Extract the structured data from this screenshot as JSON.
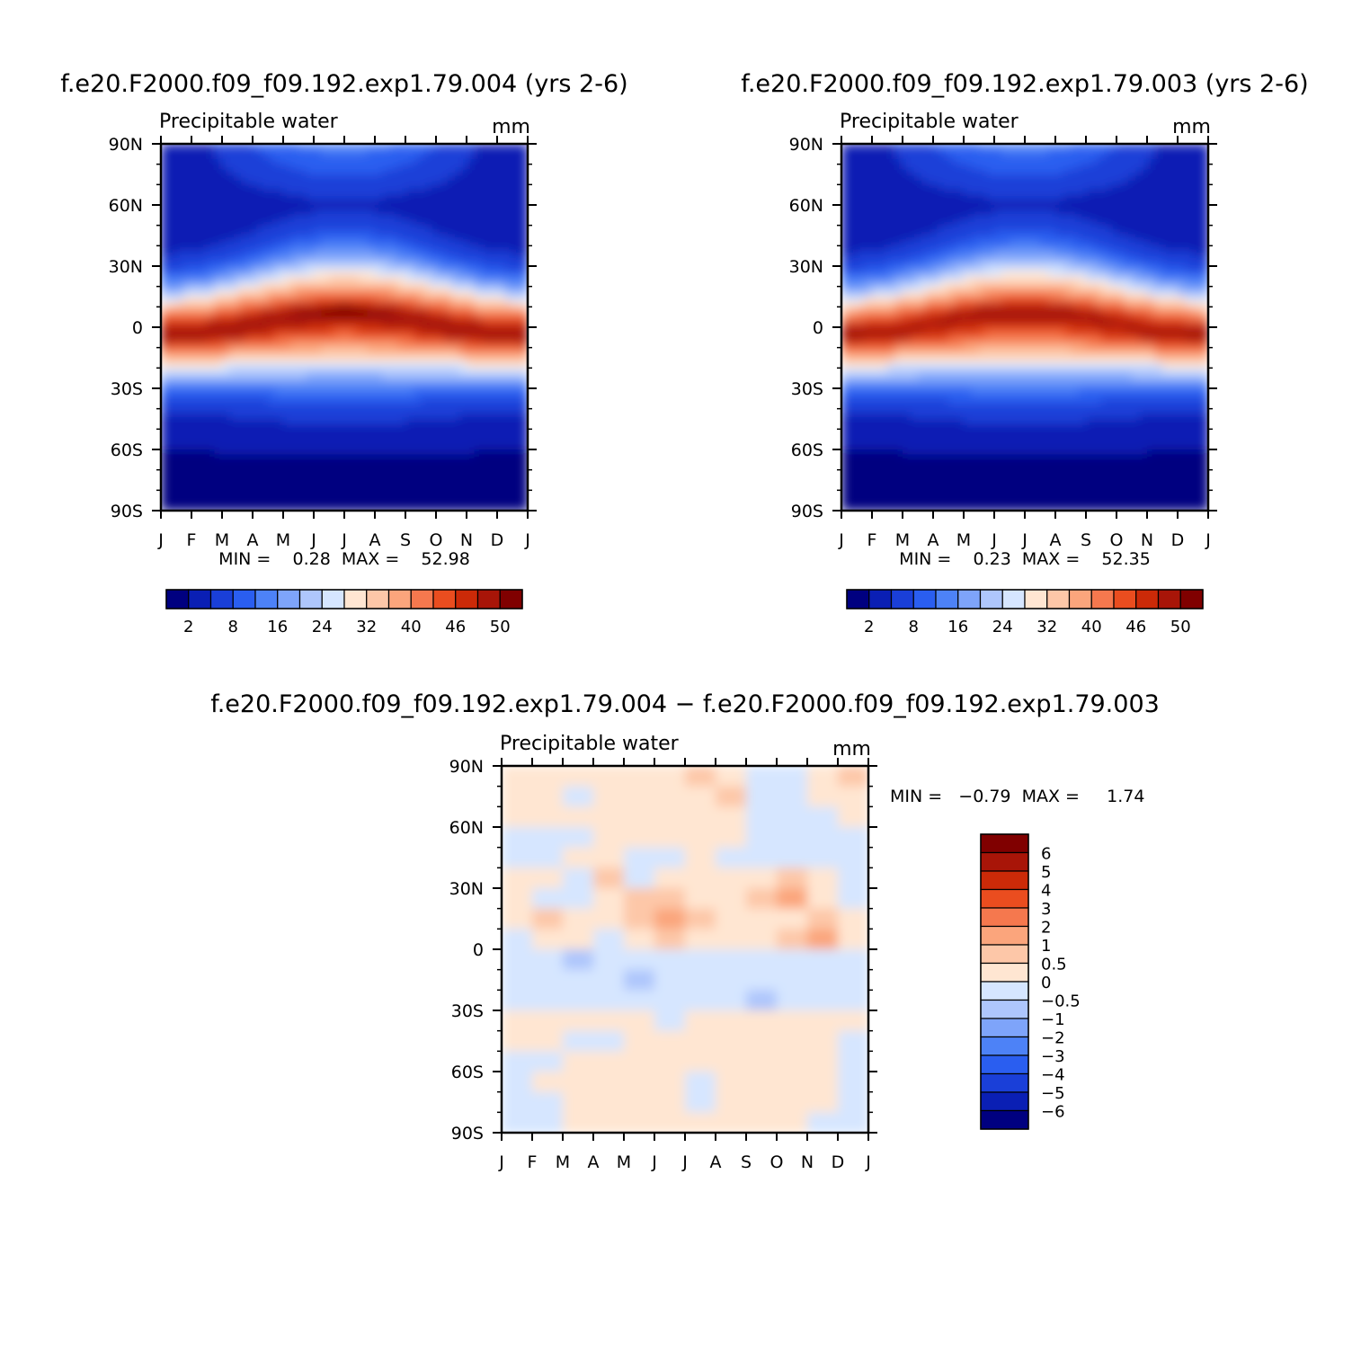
{
  "palette": {
    "full": [
      "#000080",
      "#0a1fb4",
      "#1a3fd8",
      "#2a5ef0",
      "#4d82f7",
      "#7ea4fa",
      "#aec6fc",
      "#d6e6ff",
      "#ffe6d2",
      "#fdc7a8",
      "#fba57c",
      "#f5784e",
      "#ea4d1f",
      "#cc2a08",
      "#a81508",
      "#800000"
    ],
    "diff": [
      "#000080",
      "#0a1fb4",
      "#1a3fd8",
      "#2a5ef0",
      "#4d82f7",
      "#7ea4fa",
      "#aec6fc",
      "#d6e6ff",
      "#ffe6d2",
      "#fdc7a8",
      "#fba57c",
      "#f5784e",
      "#ea4d1f",
      "#cc2a08",
      "#a81508",
      "#800000"
    ]
  },
  "chart_data": [
    {
      "type": "heatmap",
      "title": "f.e20.F2000.f09_f09.192.exp1.79.004 (yrs 2-6)",
      "left_label": "Precipitable water",
      "units": "mm",
      "x_ticks": [
        "J",
        "F",
        "M",
        "A",
        "M",
        "J",
        "J",
        "A",
        "S",
        "O",
        "N",
        "D",
        "J"
      ],
      "y_ticks": [
        "90N",
        "60N",
        "30N",
        "0",
        "30S",
        "60S",
        "90S"
      ],
      "stats": "MIN =    0.28  MAX =    52.98",
      "min": 0.28,
      "max": 52.98,
      "colorbar_labels": [
        "2",
        "8",
        "16",
        "24",
        "32",
        "40",
        "46",
        "50"
      ],
      "levels": [
        0,
        2,
        4,
        8,
        12,
        16,
        20,
        24,
        28,
        32,
        36,
        40,
        44,
        46,
        48,
        50,
        100
      ],
      "model": {
        "tropic_max": 52.98,
        "pole_n_winter": 2,
        "pole_n_summer": 14,
        "pole_s": 0.28,
        "itcz_n": 6,
        "itcz_s": -5
      }
    },
    {
      "type": "heatmap",
      "title": "f.e20.F2000.f09_f09.192.exp1.79.003 (yrs 2-6)",
      "left_label": "Precipitable water",
      "units": "mm",
      "x_ticks": [
        "J",
        "F",
        "M",
        "A",
        "M",
        "J",
        "J",
        "A",
        "S",
        "O",
        "N",
        "D",
        "J"
      ],
      "y_ticks": [
        "90N",
        "60N",
        "30N",
        "0",
        "30S",
        "60S",
        "90S"
      ],
      "stats": "MIN =    0.23  MAX =    52.35",
      "min": 0.23,
      "max": 52.35,
      "colorbar_labels": [
        "2",
        "8",
        "16",
        "24",
        "32",
        "40",
        "46",
        "50"
      ],
      "levels": [
        0,
        2,
        4,
        8,
        12,
        16,
        20,
        24,
        28,
        32,
        36,
        40,
        44,
        46,
        48,
        50,
        100
      ],
      "model": {
        "tropic_max": 52.35,
        "pole_n_winter": 2,
        "pole_n_summer": 14,
        "pole_s": 0.23,
        "itcz_n": 6,
        "itcz_s": -5
      }
    },
    {
      "type": "heatmap",
      "title": "f.e20.F2000.f09_f09.192.exp1.79.004 − f.e20.F2000.f09_f09.192.exp1.79.003",
      "left_label": "Precipitable water",
      "units": "mm",
      "x_ticks": [
        "J",
        "F",
        "M",
        "A",
        "M",
        "J",
        "J",
        "A",
        "S",
        "O",
        "N",
        "D",
        "J"
      ],
      "y_ticks": [
        "90N",
        "60N",
        "30N",
        "0",
        "30S",
        "60S",
        "90S"
      ],
      "stats": "MIN =   −0.79  MAX =     1.74",
      "min": -0.79,
      "max": 1.74,
      "colorbar_labels": [
        "6",
        "5",
        "4",
        "3",
        "2",
        "1",
        "0.5",
        "0",
        "−0.5",
        "−1",
        "−2",
        "−3",
        "−4",
        "−5",
        "−6"
      ],
      "levels": [
        -100,
        -6,
        -5,
        -4,
        -3,
        -2,
        -1,
        -0.5,
        0,
        0.5,
        1,
        2,
        3,
        4,
        5,
        6,
        100
      ],
      "cells": {
        "rows_lat": [
          85,
          75,
          65,
          55,
          45,
          35,
          25,
          15,
          5,
          -5,
          -15,
          -25,
          -35,
          -45,
          -55,
          -65,
          -75,
          -85
        ],
        "cols_month": [
          "J",
          "F",
          "M",
          "A",
          "M",
          "J",
          "J",
          "A",
          "S",
          "O",
          "N",
          "D"
        ],
        "values": [
          [
            0.2,
            0.3,
            0.2,
            0.3,
            0.2,
            0.3,
            0.6,
            0.4,
            -0.1,
            -0.2,
            0.3,
            0.6
          ],
          [
            0.2,
            0.3,
            -0.1,
            0.4,
            0.3,
            0.3,
            0.3,
            0.5,
            -0.2,
            -0.2,
            0.2,
            0.3
          ],
          [
            0.2,
            0.3,
            0.2,
            0.3,
            0.2,
            0.3,
            0.2,
            0.3,
            -0.2,
            -0.3,
            -0.2,
            0.2
          ],
          [
            -0.2,
            -0.3,
            -0.1,
            0.2,
            0.3,
            0.3,
            0.2,
            0.3,
            -0.2,
            -0.3,
            -0.2,
            -0.1
          ],
          [
            -0.2,
            -0.1,
            0.2,
            0.3,
            -0.2,
            -0.2,
            0.3,
            -0.1,
            -0.2,
            -0.2,
            -0.3,
            -0.2
          ],
          [
            0.2,
            0.3,
            -0.1,
            0.6,
            -0.2,
            0.3,
            0.4,
            0.3,
            0.4,
            0.6,
            0.3,
            -0.2
          ],
          [
            0.3,
            -0.2,
            -0.5,
            0.2,
            0.6,
            0.8,
            0.4,
            0.2,
            0.7,
            1.1,
            0.3,
            -0.3
          ],
          [
            0.2,
            0.6,
            0.2,
            0.3,
            0.8,
            1.3,
            0.7,
            0.4,
            0.3,
            0.3,
            0.6,
            0.2
          ],
          [
            -0.1,
            0.3,
            0.2,
            -0.2,
            0.2,
            0.5,
            0.3,
            0.3,
            0.2,
            0.7,
            1.2,
            0.3
          ],
          [
            -0.2,
            -0.2,
            -0.7,
            -0.2,
            -0.3,
            -0.2,
            -0.3,
            -0.2,
            -0.3,
            -0.2,
            -0.2,
            -0.1
          ],
          [
            -0.2,
            -0.3,
            -0.2,
            -0.2,
            -0.6,
            -0.2,
            -0.3,
            -0.2,
            -0.3,
            -0.2,
            -0.2,
            -0.3
          ],
          [
            -0.3,
            -0.2,
            -0.3,
            -0.2,
            -0.3,
            -0.2,
            -0.3,
            -0.2,
            -0.6,
            -0.2,
            -0.3,
            -0.2
          ],
          [
            0.2,
            0.3,
            0.2,
            0.3,
            0.2,
            -0.1,
            0.2,
            0.3,
            0.2,
            0.3,
            0.2,
            0.3
          ],
          [
            0.2,
            0.3,
            -0.2,
            -0.1,
            0.3,
            0.2,
            0.3,
            0.2,
            0.3,
            0.2,
            0.3,
            -0.2
          ],
          [
            -0.2,
            -0.1,
            0.2,
            0.3,
            0.2,
            0.3,
            0.2,
            0.3,
            0.2,
            0.3,
            0.2,
            -0.1
          ],
          [
            -0.2,
            0.2,
            0.3,
            0.2,
            0.3,
            0.2,
            -0.2,
            0.3,
            0.2,
            0.3,
            0.2,
            -0.2
          ],
          [
            -0.1,
            -0.2,
            0.2,
            0.3,
            0.2,
            0.3,
            -0.2,
            0.3,
            0.2,
            0.3,
            0.2,
            -0.1
          ],
          [
            -0.2,
            -0.1,
            0.2,
            0.3,
            0.2,
            0.3,
            0.2,
            0.3,
            0.2,
            0.3,
            -0.2,
            -0.1
          ]
        ]
      }
    }
  ]
}
